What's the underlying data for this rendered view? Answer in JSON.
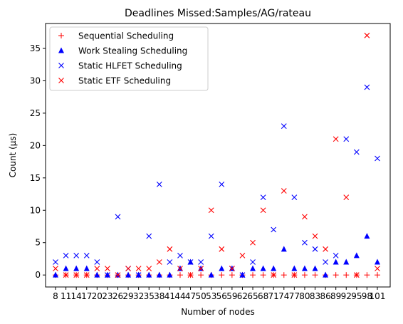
{
  "chart_data": {
    "type": "scatter",
    "title": "Deadlines Missed:Samples/AG/rateau",
    "xlabel": "Number of nodes",
    "ylabel": "Count (µs)",
    "categories": [
      "8",
      "11",
      "14",
      "17",
      "20",
      "23",
      "26",
      "29",
      "32",
      "35",
      "38",
      "41",
      "44",
      "47",
      "50",
      "53",
      "56",
      "59",
      "62",
      "65",
      "68",
      "71",
      "74",
      "77",
      "80",
      "83",
      "86",
      "89",
      "92",
      "95",
      "98",
      "101"
    ],
    "ylim": [
      -1.85,
      38.85
    ],
    "yticks": [
      0,
      5,
      10,
      15,
      20,
      25,
      30,
      35
    ],
    "legend_position": "top-left",
    "series": [
      {
        "name": "Sequential Scheduling",
        "marker": "plus",
        "color": "#ff0000",
        "values": [
          0,
          0,
          0,
          0,
          0,
          0,
          0,
          0,
          0,
          0,
          0,
          0,
          0,
          0,
          0,
          0,
          0,
          0,
          0,
          0,
          0,
          0,
          0,
          0,
          0,
          0,
          0,
          0,
          0,
          0,
          0,
          0
        ]
      },
      {
        "name": "Work Stealing Scheduling",
        "marker": "triangle",
        "color": "#0000ff",
        "values": [
          0,
          1,
          1,
          1,
          0,
          0,
          0,
          0,
          0,
          0,
          0,
          0,
          1,
          2,
          1,
          0,
          1,
          1,
          0,
          1,
          1,
          1,
          4,
          1,
          1,
          1,
          0,
          2,
          2,
          3,
          6,
          2
        ]
      },
      {
        "name": "Static HLFET Scheduling",
        "marker": "x",
        "color": "#0000ff",
        "values": [
          2,
          3,
          3,
          3,
          2,
          0,
          9,
          1,
          0,
          6,
          14,
          2,
          3,
          2,
          2,
          6,
          14,
          1,
          0,
          2,
          12,
          7,
          23,
          12,
          5,
          4,
          2,
          3,
          21,
          19,
          29,
          18
        ]
      },
      {
        "name": "Static ETF Scheduling",
        "marker": "x",
        "color": "#ff0000",
        "values": [
          1,
          0,
          0,
          0,
          1,
          1,
          0,
          1,
          1,
          1,
          2,
          4,
          1,
          0,
          1,
          10,
          4,
          1,
          3,
          5,
          10,
          0,
          13,
          0,
          9,
          6,
          4,
          21,
          12,
          0,
          37,
          1
        ]
      }
    ]
  }
}
